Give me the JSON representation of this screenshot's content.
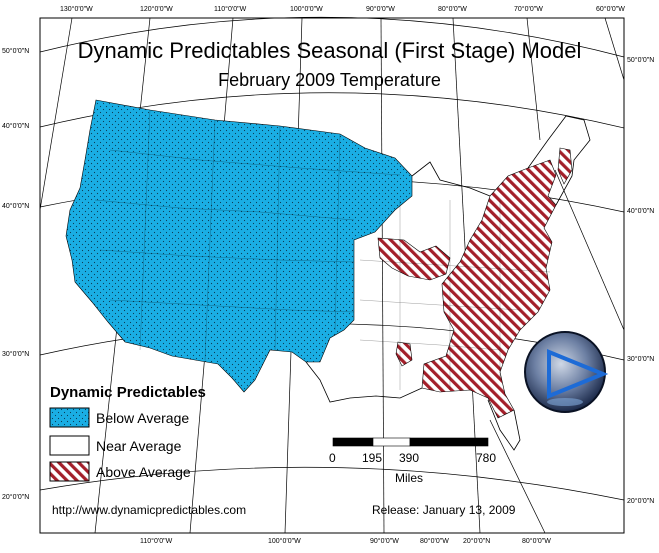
{
  "title": "Dynamic Predictables Seasonal (First Stage) Model",
  "subtitle": "February 2009 Temperature",
  "legend": {
    "title": "Dynamic Predictables",
    "items": [
      {
        "label": "Below Average",
        "color": "#1aaee4"
      },
      {
        "label": "Near Average",
        "color": "#ffffff"
      },
      {
        "label": "Above Average",
        "color": "#a31f2a"
      }
    ]
  },
  "scale_bar": {
    "ticks": [
      "0",
      "195",
      "390",
      "780"
    ],
    "unit": "Miles"
  },
  "footer": {
    "url": "http://www.dynamicpredictables.com",
    "release": "Release: January 13, 2009"
  },
  "graticule": {
    "top_lon": [
      "130°0'0\"W",
      "120°0'0\"W",
      "110°0'0\"W",
      "100°0'0\"W",
      "90°0'0\"W",
      "80°0'0\"W",
      "70°0'0\"W",
      "60°0'0\"W"
    ],
    "bottom_lon": [
      "110°0'0\"W",
      "100°0'0\"W",
      "90°0'0\"W",
      "80°0'0\"W",
      "20°0'0\"N",
      "80°0'0\"W"
    ],
    "left_lat": [
      "50°0'0\"N",
      "40°0'0\"N",
      "40°0'0\"N",
      "30°0'0\"N",
      "20°0'0\"N"
    ],
    "right_lat": [
      "50°0'0\"N",
      "40°0'0\"N",
      "30°0'0\"N",
      "20°0'0\"N"
    ]
  },
  "logo_icon": "play-triangle-globe-icon"
}
